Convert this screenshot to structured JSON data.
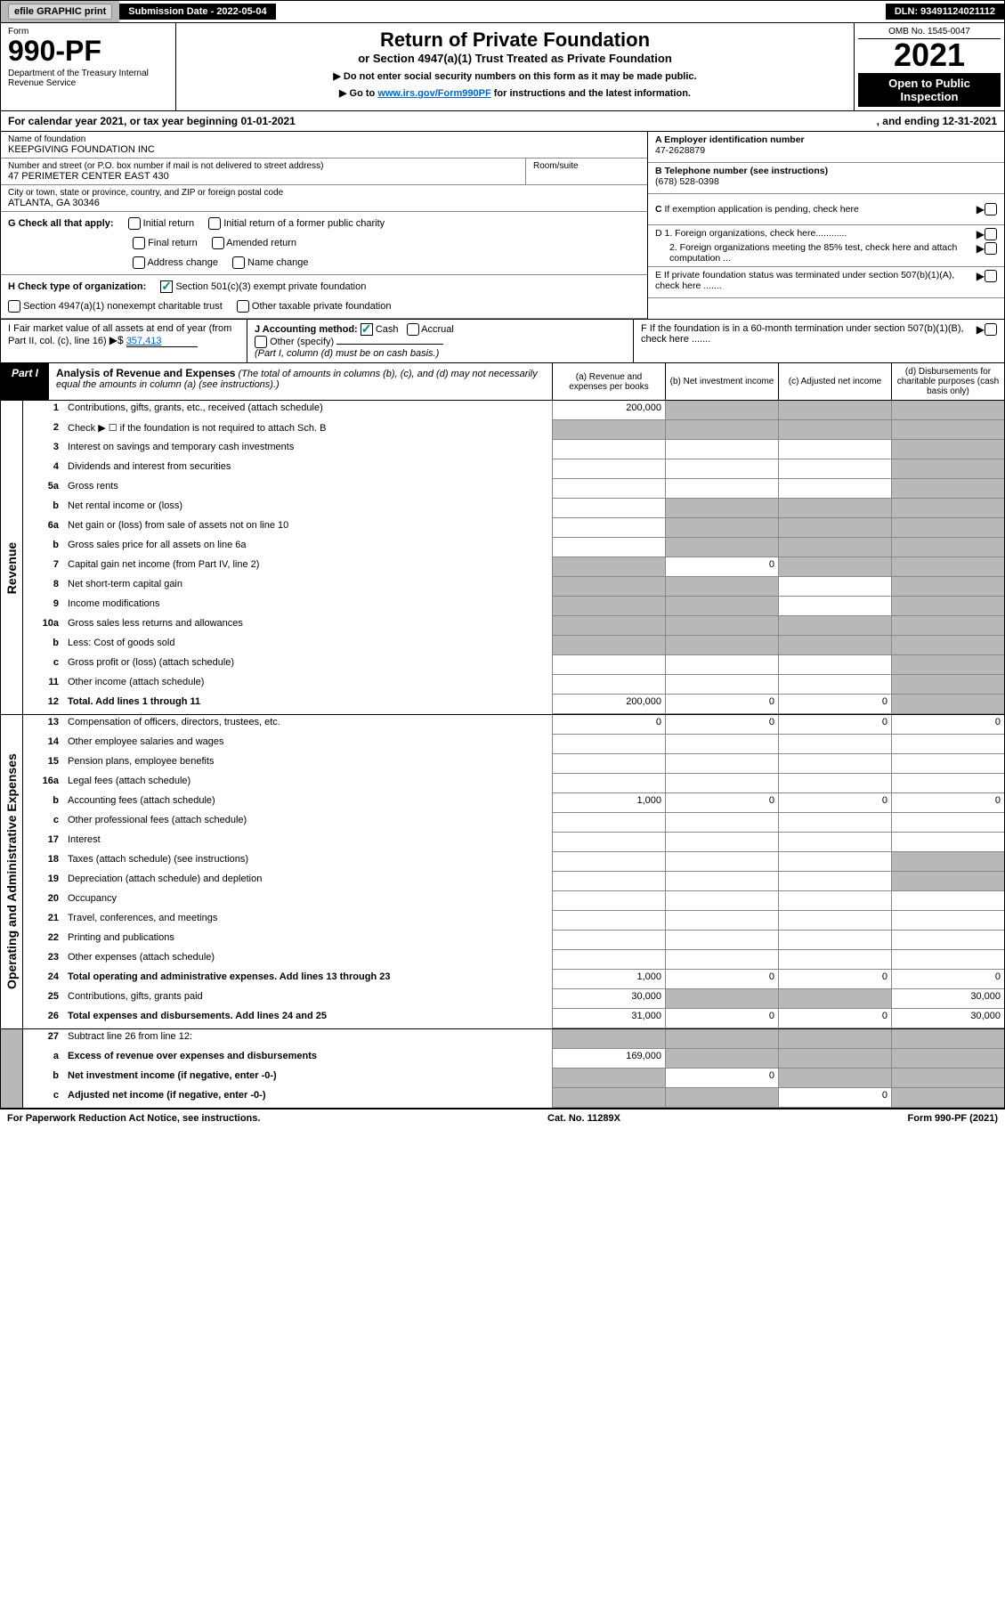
{
  "topbar": {
    "efile": "efile GRAPHIC print",
    "submission_label": "Submission Date - 2022-05-04",
    "dln": "DLN: 93491124021112"
  },
  "header": {
    "form_label": "Form",
    "form_number": "990-PF",
    "dept": "Department of the Treasury\nInternal Revenue Service",
    "title": "Return of Private Foundation",
    "subtitle": "or Section 4947(a)(1) Trust Treated as Private Foundation",
    "info1": "▶ Do not enter social security numbers on this form as it may be made public.",
    "info2_pre": "▶ Go to ",
    "info2_link": "www.irs.gov/Form990PF",
    "info2_post": " for instructions and the latest information.",
    "omb": "OMB No. 1545-0047",
    "year": "2021",
    "open_public": "Open to Public Inspection"
  },
  "calendar": {
    "text_pre": "For calendar year 2021, or tax year beginning 01-01-2021",
    "text_post": ", and ending 12-31-2021"
  },
  "entity": {
    "name_label": "Name of foundation",
    "name": "KEEPGIVING FOUNDATION INC",
    "street_label": "Number and street (or P.O. box number if mail is not delivered to street address)",
    "street": "47 PERIMETER CENTER EAST 430",
    "room_label": "Room/suite",
    "city_label": "City or town, state or province, country, and ZIP or foreign postal code",
    "city": "ATLANTA, GA  30346",
    "a_label": "A Employer identification number",
    "a_val": "47-2628879",
    "b_label": "B Telephone number (see instructions)",
    "b_val": "(678) 528-0398",
    "c_label": "C If exemption application is pending, check here",
    "d1_label": "D 1. Foreign organizations, check here............",
    "d2_label": "2. Foreign organizations meeting the 85% test, check here and attach computation ...",
    "e_label": "E  If private foundation status was terminated under section 507(b)(1)(A), check here .......",
    "f_label": "F  If the foundation is in a 60-month termination under section 507(b)(1)(B), check here .......",
    "g_label": "G Check all that apply:",
    "g_opts": {
      "initial": "Initial return",
      "initial_former": "Initial return of a former public charity",
      "final": "Final return",
      "amended": "Amended return",
      "address": "Address change",
      "name_change": "Name change"
    },
    "h_label": "H Check type of organization:",
    "h_opts": {
      "sec501": "Section 501(c)(3) exempt private foundation",
      "sec4947": "Section 4947(a)(1) nonexempt charitable trust",
      "other_taxable": "Other taxable private foundation"
    },
    "i_label": "I Fair market value of all assets at end of year (from Part II, col. (c), line 16)",
    "i_val": "357,413",
    "j_label": "J Accounting method:",
    "j_cash": "Cash",
    "j_accrual": "Accrual",
    "j_other": "Other (specify)",
    "j_note": "(Part I, column (d) must be on cash basis.)"
  },
  "partI": {
    "tab": "Part I",
    "title": "Analysis of Revenue and Expenses",
    "title_note": "(The total of amounts in columns (b), (c), and (d) may not necessarily equal the amounts in column (a) (see instructions).)",
    "col_a": "(a)  Revenue and expenses per books",
    "col_b": "(b)  Net investment income",
    "col_c": "(c)  Adjusted net income",
    "col_d": "(d)  Disbursements for charitable purposes (cash basis only)"
  },
  "sections": {
    "revenue": "Revenue",
    "expenses": "Operating and Administrative Expenses"
  },
  "lines": {
    "l1": {
      "num": "1",
      "desc": "Contributions, gifts, grants, etc., received (attach schedule)",
      "a": "200,000",
      "b": "",
      "c": "",
      "d": ""
    },
    "l2": {
      "num": "2",
      "desc": "Check ▶ ☐ if the foundation is not required to attach Sch. B"
    },
    "l3": {
      "num": "3",
      "desc": "Interest on savings and temporary cash investments"
    },
    "l4": {
      "num": "4",
      "desc": "Dividends and interest from securities"
    },
    "l5a": {
      "num": "5a",
      "desc": "Gross rents"
    },
    "l5b": {
      "num": "b",
      "desc": "Net rental income or (loss)"
    },
    "l6a": {
      "num": "6a",
      "desc": "Net gain or (loss) from sale of assets not on line 10"
    },
    "l6b": {
      "num": "b",
      "desc": "Gross sales price for all assets on line 6a"
    },
    "l7": {
      "num": "7",
      "desc": "Capital gain net income (from Part IV, line 2)",
      "b": "0"
    },
    "l8": {
      "num": "8",
      "desc": "Net short-term capital gain"
    },
    "l9": {
      "num": "9",
      "desc": "Income modifications"
    },
    "l10a": {
      "num": "10a",
      "desc": "Gross sales less returns and allowances"
    },
    "l10b": {
      "num": "b",
      "desc": "Less: Cost of goods sold"
    },
    "l10c": {
      "num": "c",
      "desc": "Gross profit or (loss) (attach schedule)"
    },
    "l11": {
      "num": "11",
      "desc": "Other income (attach schedule)"
    },
    "l12": {
      "num": "12",
      "desc": "Total. Add lines 1 through 11",
      "a": "200,000",
      "b": "0",
      "c": "0"
    },
    "l13": {
      "num": "13",
      "desc": "Compensation of officers, directors, trustees, etc.",
      "a": "0",
      "b": "0",
      "c": "0",
      "d": "0"
    },
    "l14": {
      "num": "14",
      "desc": "Other employee salaries and wages"
    },
    "l15": {
      "num": "15",
      "desc": "Pension plans, employee benefits"
    },
    "l16a": {
      "num": "16a",
      "desc": "Legal fees (attach schedule)"
    },
    "l16b": {
      "num": "b",
      "desc": "Accounting fees (attach schedule)",
      "a": "1,000",
      "b": "0",
      "c": "0",
      "d": "0"
    },
    "l16c": {
      "num": "c",
      "desc": "Other professional fees (attach schedule)"
    },
    "l17": {
      "num": "17",
      "desc": "Interest"
    },
    "l18": {
      "num": "18",
      "desc": "Taxes (attach schedule) (see instructions)"
    },
    "l19": {
      "num": "19",
      "desc": "Depreciation (attach schedule) and depletion"
    },
    "l20": {
      "num": "20",
      "desc": "Occupancy"
    },
    "l21": {
      "num": "21",
      "desc": "Travel, conferences, and meetings"
    },
    "l22": {
      "num": "22",
      "desc": "Printing and publications"
    },
    "l23": {
      "num": "23",
      "desc": "Other expenses (attach schedule)"
    },
    "l24": {
      "num": "24",
      "desc": "Total operating and administrative expenses. Add lines 13 through 23",
      "a": "1,000",
      "b": "0",
      "c": "0",
      "d": "0"
    },
    "l25": {
      "num": "25",
      "desc": "Contributions, gifts, grants paid",
      "a": "30,000",
      "d": "30,000"
    },
    "l26": {
      "num": "26",
      "desc": "Total expenses and disbursements. Add lines 24 and 25",
      "a": "31,000",
      "b": "0",
      "c": "0",
      "d": "30,000"
    },
    "l27": {
      "num": "27",
      "desc": "Subtract line 26 from line 12:"
    },
    "l27a": {
      "num": "a",
      "desc": "Excess of revenue over expenses and disbursements",
      "a": "169,000"
    },
    "l27b": {
      "num": "b",
      "desc": "Net investment income (if negative, enter -0-)",
      "b": "0"
    },
    "l27c": {
      "num": "c",
      "desc": "Adjusted net income (if negative, enter -0-)",
      "c": "0"
    }
  },
  "footer": {
    "paperwork": "For Paperwork Reduction Act Notice, see instructions.",
    "cat": "Cat. No. 11289X",
    "form": "Form 990-PF (2021)"
  },
  "colors": {
    "black": "#000000",
    "shaded": "#b8b8b8",
    "link": "#0066cc",
    "check": "#008080"
  }
}
